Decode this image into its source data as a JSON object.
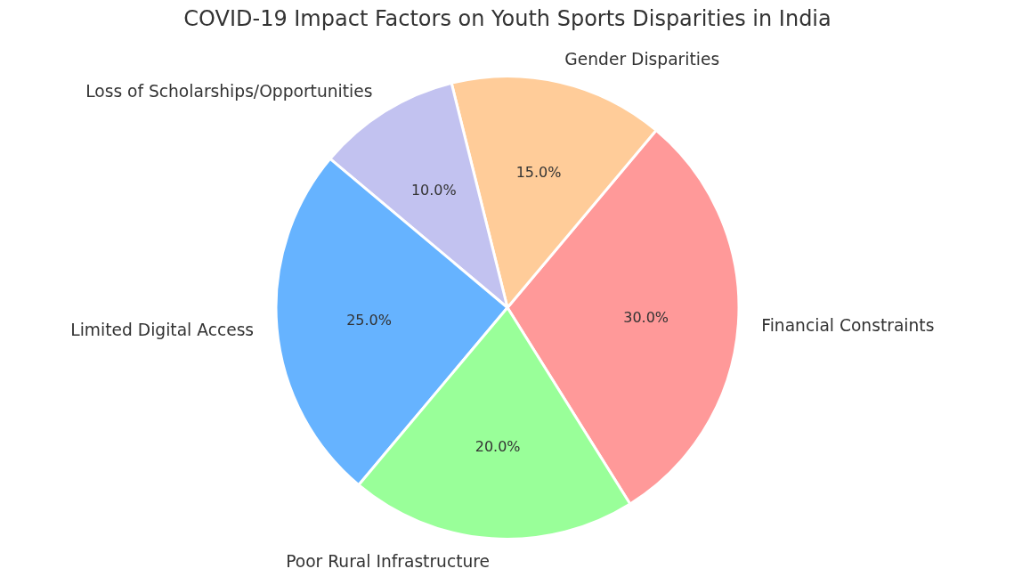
{
  "chart_data": {
    "type": "pie",
    "title": "COVID-19 Impact Factors on Youth Sports Disparities in India",
    "categories": [
      "Financial Constraints",
      "Gender Disparities",
      "Loss of Scholarships/Opportunities",
      "Limited Digital Access",
      "Poor Rural Infrastructure"
    ],
    "values": [
      30,
      15,
      10,
      25,
      20
    ],
    "colors": [
      "#ff9999",
      "#ffcc99",
      "#c2c2f0",
      "#66b3ff",
      "#99ff99"
    ],
    "value_labels": [
      "30.0%",
      "15.0%",
      "10.0%",
      "25.0%",
      "20.0%"
    ]
  }
}
